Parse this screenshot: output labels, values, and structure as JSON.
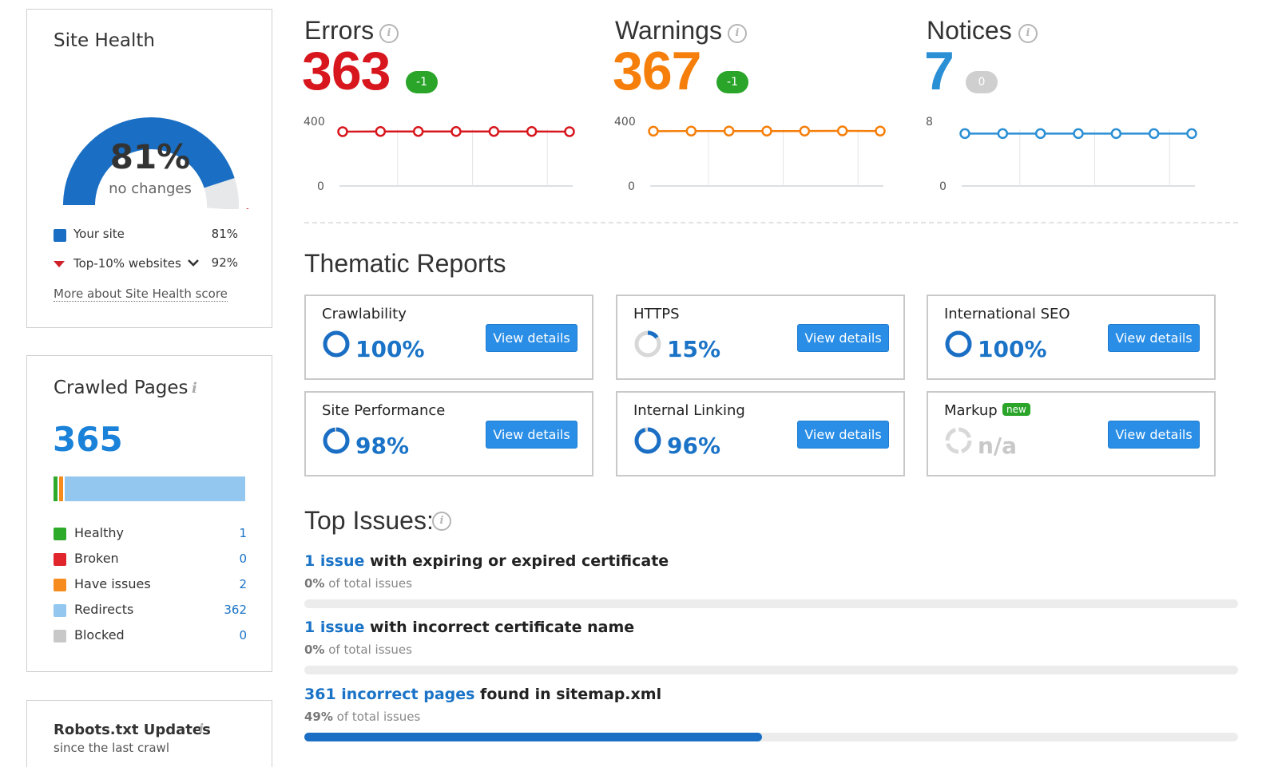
{
  "site_health": {
    "title": "Site Health",
    "score": "81%",
    "change": "no changes",
    "score_fraction": 0.81,
    "top10_fraction": 0.92,
    "legend": [
      {
        "label": "Your site",
        "value": "81%",
        "color": "#1a6fc4"
      },
      {
        "label": "Top-10% websites",
        "value": "92%",
        "color": "#d0202a"
      }
    ],
    "more_link": "More about Site Health score"
  },
  "crawled_pages": {
    "title": "Crawled Pages",
    "total": "365",
    "bar": [
      {
        "label": "Healthy",
        "value": 1,
        "color": "#2eaa2a"
      },
      {
        "label": "Broken",
        "value": 0,
        "color": "#e0252d"
      },
      {
        "label": "Have issues",
        "value": 2,
        "color": "#f78c1e"
      },
      {
        "label": "Redirects",
        "value": 362,
        "color": "#93c7f0"
      },
      {
        "label": "Blocked",
        "value": 0,
        "color": "#c8c8c8"
      }
    ],
    "rows": [
      {
        "label": "Healthy",
        "count": "1",
        "color": "#2eaa2a"
      },
      {
        "label": "Broken",
        "count": "0",
        "color": "#e0252d"
      },
      {
        "label": "Have issues",
        "count": "2",
        "color": "#f78c1e"
      },
      {
        "label": "Redirects",
        "count": "362",
        "color": "#93c7f0"
      },
      {
        "label": "Blocked",
        "count": "0",
        "color": "#c8c8c8"
      }
    ]
  },
  "robots": {
    "title": "Robots.txt Updates",
    "subtitle": "since the last crawl"
  },
  "metrics": [
    {
      "title": "Errors",
      "value": "363",
      "badge": "-1",
      "color": "#d7161d",
      "badge_color": "#2aa52a",
      "axis_top": "400",
      "axis_bottom": "0",
      "ymax": 400,
      "trend": [
        363,
        364,
        364,
        364,
        364,
        364,
        363
      ]
    },
    {
      "title": "Warnings",
      "value": "367",
      "badge": "-1",
      "color": "#f57f0a",
      "badge_color": "#2aa52a",
      "axis_top": "400",
      "axis_bottom": "0",
      "ymax": 400,
      "trend": [
        366,
        367,
        367,
        367,
        367,
        368,
        367
      ]
    },
    {
      "title": "Notices",
      "value": "7",
      "badge": "0",
      "color": "#2a8fd4",
      "badge_color": "#cfcfcf",
      "axis_top": "8",
      "axis_bottom": "0",
      "ymax": 8,
      "trend": [
        7,
        7,
        7,
        7,
        7,
        7,
        7
      ]
    }
  ],
  "thematic": {
    "title": "Thematic Reports",
    "button_label": "View details",
    "reports": [
      {
        "title": "Crawlability",
        "value": "100%",
        "fraction": 1.0,
        "badge": ""
      },
      {
        "title": "HTTPS",
        "value": "15%",
        "fraction": 0.15,
        "badge": ""
      },
      {
        "title": "International SEO",
        "value": "100%",
        "fraction": 1.0,
        "badge": ""
      },
      {
        "title": "Site Performance",
        "value": "98%",
        "fraction": 0.98,
        "badge": ""
      },
      {
        "title": "Internal Linking",
        "value": "96%",
        "fraction": 0.96,
        "badge": ""
      },
      {
        "title": "Markup",
        "value": "n/a",
        "fraction": null,
        "badge": "new"
      }
    ]
  },
  "top_issues": {
    "title": "Top Issues:",
    "items": [
      {
        "link": "1 issue",
        "text": " with expiring or expired certificate",
        "pct": "0%",
        "pct_suffix": " of total issues",
        "fraction": 0.0
      },
      {
        "link": "1 issue",
        "text": " with incorrect certificate name",
        "pct": "0%",
        "pct_suffix": " of total issues",
        "fraction": 0.0
      },
      {
        "link": "361 incorrect pages",
        "text": " found in sitemap.xml",
        "pct": "49%",
        "pct_suffix": " of total issues",
        "fraction": 0.49
      }
    ]
  }
}
